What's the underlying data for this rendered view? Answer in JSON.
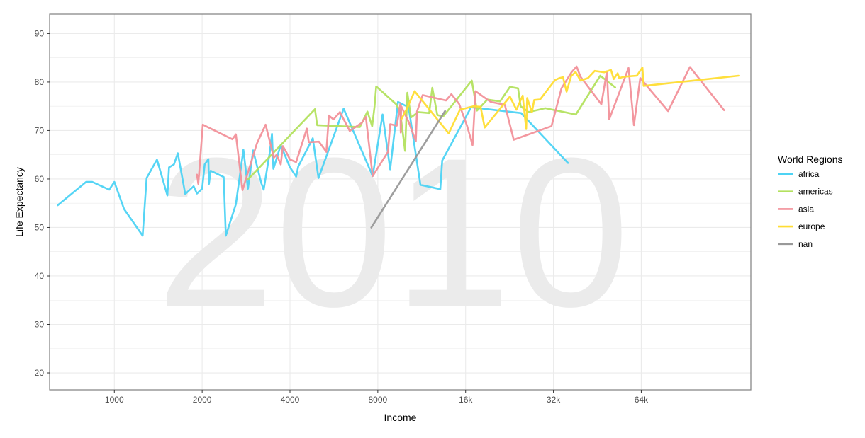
{
  "chart_data": {
    "type": "line",
    "watermark": "2010",
    "xlabel": "Income",
    "ylabel": "Life Expectancy",
    "x_scale": "log2",
    "xlim": [
      600,
      152000
    ],
    "ylim": [
      16.5,
      94
    ],
    "x_ticks": [
      {
        "value": 1000,
        "label": "1000"
      },
      {
        "value": 2000,
        "label": "2000"
      },
      {
        "value": 4000,
        "label": "4000"
      },
      {
        "value": 8000,
        "label": "8000"
      },
      {
        "value": 16000,
        "label": "16k"
      },
      {
        "value": 32000,
        "label": "32k"
      },
      {
        "value": 64000,
        "label": "64k"
      }
    ],
    "y_ticks": [
      20,
      30,
      40,
      50,
      60,
      70,
      80,
      90
    ],
    "grid": true,
    "legend_title": "World Regions",
    "legend_position": "right",
    "series": [
      {
        "name": "africa",
        "color": "#4dd3f4",
        "points": [
          [
            640,
            54.6
          ],
          [
            800,
            59.4
          ],
          [
            840,
            59.4
          ],
          [
            960,
            57.8
          ],
          [
            1000,
            59.4
          ],
          [
            1080,
            53.8
          ],
          [
            1250,
            48.3
          ],
          [
            1290,
            60.2
          ],
          [
            1400,
            64.0
          ],
          [
            1520,
            56.6
          ],
          [
            1540,
            62.4
          ],
          [
            1600,
            63.0
          ],
          [
            1650,
            65.3
          ],
          [
            1750,
            56.9
          ],
          [
            1870,
            58.5
          ],
          [
            1920,
            57.0
          ],
          [
            2000,
            58.0
          ],
          [
            2040,
            63.0
          ],
          [
            2100,
            64.1
          ],
          [
            2110,
            59.0
          ],
          [
            2140,
            61.7
          ],
          [
            2370,
            60.4
          ],
          [
            2410,
            48.3
          ],
          [
            2610,
            54.8
          ],
          [
            2770,
            66.0
          ],
          [
            2870,
            58.0
          ],
          [
            2990,
            65.9
          ],
          [
            3190,
            59.1
          ],
          [
            3250,
            57.8
          ],
          [
            3410,
            65.5
          ],
          [
            3470,
            69.3
          ],
          [
            3510,
            62.1
          ],
          [
            3720,
            67.0
          ],
          [
            3990,
            62.5
          ],
          [
            4200,
            60.5
          ],
          [
            4270,
            62.6
          ],
          [
            4790,
            68.4
          ],
          [
            5010,
            60.2
          ],
          [
            6110,
            74.5
          ],
          [
            7680,
            60.6
          ],
          [
            8310,
            73.3
          ],
          [
            8820,
            62.0
          ],
          [
            9380,
            75.9
          ],
          [
            10200,
            74.8
          ],
          [
            11200,
            58.8
          ],
          [
            13100,
            57.9
          ],
          [
            13300,
            63.8
          ],
          [
            16700,
            74.8
          ],
          [
            24800,
            73.6
          ],
          [
            35900,
            63.3
          ]
        ]
      },
      {
        "name": "americas",
        "color": "#b3e15f",
        "points": [
          [
            2880,
            60.0
          ],
          [
            4870,
            74.4
          ],
          [
            4960,
            71.1
          ],
          [
            6940,
            70.7
          ],
          [
            7370,
            73.9
          ],
          [
            7650,
            70.9
          ],
          [
            7800,
            75.0
          ],
          [
            7900,
            79.1
          ],
          [
            9250,
            75.4
          ],
          [
            9540,
            73.9
          ],
          [
            9920,
            65.8
          ],
          [
            10100,
            77.8
          ],
          [
            10400,
            72.7
          ],
          [
            11000,
            73.8
          ],
          [
            12000,
            73.6
          ],
          [
            12300,
            78.8
          ],
          [
            12800,
            73.2
          ],
          [
            13400,
            72.9
          ],
          [
            16800,
            80.3
          ],
          [
            17500,
            74.1
          ],
          [
            19000,
            76.4
          ],
          [
            21000,
            76.0
          ],
          [
            22700,
            79.0
          ],
          [
            24200,
            78.7
          ],
          [
            24700,
            75.0
          ],
          [
            26300,
            73.8
          ],
          [
            30000,
            74.6
          ],
          [
            38200,
            73.3
          ],
          [
            46300,
            81.3
          ],
          [
            52100,
            78.9
          ]
        ]
      },
      {
        "name": "asia",
        "color": "#f2919a",
        "points": [
          [
            1920,
            60.9
          ],
          [
            1940,
            59.0
          ],
          [
            2010,
            71.2
          ],
          [
            2540,
            68.2
          ],
          [
            2610,
            69.2
          ],
          [
            2750,
            57.7
          ],
          [
            3080,
            67.3
          ],
          [
            3300,
            71.2
          ],
          [
            3520,
            64.4
          ],
          [
            3600,
            65.0
          ],
          [
            3720,
            63.0
          ],
          [
            3780,
            66.8
          ],
          [
            3880,
            65.6
          ],
          [
            4000,
            64.0
          ],
          [
            4200,
            63.5
          ],
          [
            4570,
            70.4
          ],
          [
            4640,
            67.6
          ],
          [
            5030,
            67.7
          ],
          [
            5330,
            65.6
          ],
          [
            5440,
            73.1
          ],
          [
            5640,
            72.3
          ],
          [
            5930,
            73.8
          ],
          [
            6410,
            69.9
          ],
          [
            7050,
            71.6
          ],
          [
            7280,
            72.8
          ],
          [
            7680,
            60.6
          ],
          [
            8670,
            65.6
          ],
          [
            8820,
            71.3
          ],
          [
            9290,
            71.0
          ],
          [
            9560,
            75.5
          ],
          [
            9590,
            69.6
          ],
          [
            9620,
            75.0
          ],
          [
            10200,
            71.8
          ],
          [
            10800,
            67.8
          ],
          [
            10900,
            73.9
          ],
          [
            11400,
            77.3
          ],
          [
            13700,
            76.2
          ],
          [
            14300,
            77.5
          ],
          [
            15200,
            75.5
          ],
          [
            16200,
            70.9
          ],
          [
            16900,
            67.0
          ],
          [
            17300,
            78.1
          ],
          [
            19500,
            75.9
          ],
          [
            21800,
            75.3
          ],
          [
            23400,
            68.1
          ],
          [
            31500,
            70.9
          ],
          [
            34100,
            78.7
          ],
          [
            36900,
            82.0
          ],
          [
            38400,
            83.2
          ],
          [
            39600,
            81.1
          ],
          [
            46700,
            75.4
          ],
          [
            48800,
            82.2
          ],
          [
            49700,
            72.3
          ],
          [
            57900,
            82.9
          ],
          [
            60400,
            71.1
          ],
          [
            63500,
            80.8
          ],
          [
            79100,
            74.0
          ],
          [
            94000,
            83.1
          ],
          [
            123000,
            74.2
          ]
        ]
      },
      {
        "name": "europe",
        "color": "#ffdd33",
        "points": [
          [
            9630,
            72.3
          ],
          [
            10100,
            74.7
          ],
          [
            10700,
            78.1
          ],
          [
            14000,
            69.4
          ],
          [
            15300,
            74.3
          ],
          [
            17000,
            75.0
          ],
          [
            18000,
            74.9
          ],
          [
            18600,
            70.6
          ],
          [
            22700,
            77.0
          ],
          [
            23900,
            74.3
          ],
          [
            25100,
            77.2
          ],
          [
            25800,
            70.3
          ],
          [
            26000,
            76.7
          ],
          [
            27000,
            73.8
          ],
          [
            27500,
            76.3
          ],
          [
            28800,
            76.4
          ],
          [
            32400,
            80.4
          ],
          [
            33500,
            80.8
          ],
          [
            34500,
            81.0
          ],
          [
            35500,
            78.0
          ],
          [
            36800,
            81.2
          ],
          [
            38100,
            82.1
          ],
          [
            39600,
            80.3
          ],
          [
            42000,
            80.8
          ],
          [
            44300,
            82.3
          ],
          [
            47800,
            82.0
          ],
          [
            50400,
            82.5
          ],
          [
            51500,
            80.6
          ],
          [
            53100,
            81.8
          ],
          [
            53800,
            80.8
          ],
          [
            55900,
            81.1
          ],
          [
            61800,
            81.3
          ],
          [
            64600,
            83.0
          ],
          [
            65200,
            79.2
          ],
          [
            138000,
            81.3
          ]
        ]
      },
      {
        "name": "nan",
        "color": "#999999",
        "points": [
          [
            7600,
            50.0
          ],
          [
            13600,
            74.0
          ]
        ]
      }
    ]
  }
}
